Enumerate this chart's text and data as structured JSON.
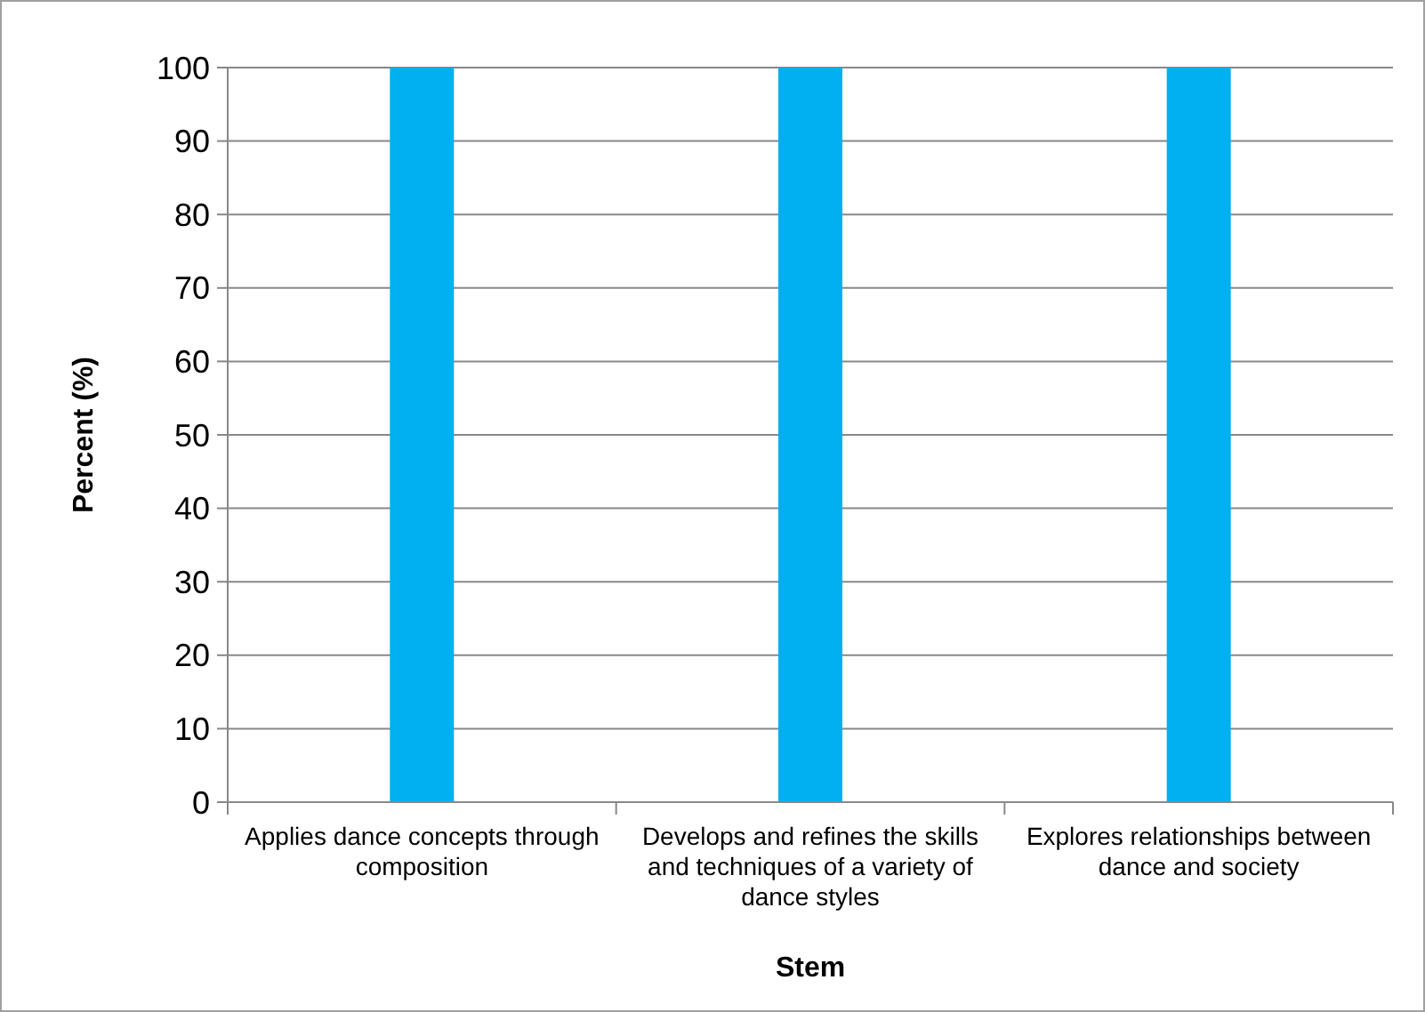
{
  "chart_data": {
    "type": "bar",
    "xlabel": "Stem",
    "ylabel": "Percent (%)",
    "categories": [
      "Applies dance concepts through composition",
      "Develops and refines the skills and techniques of a variety of dance styles",
      "Explores relationships between dance and society"
    ],
    "values": [
      100,
      100,
      100
    ],
    "color": "#00b0f0",
    "ylim": [
      0,
      100
    ],
    "yticks": [
      0,
      10,
      20,
      30,
      40,
      50,
      60,
      70,
      80,
      90,
      100
    ],
    "grid": "y"
  }
}
